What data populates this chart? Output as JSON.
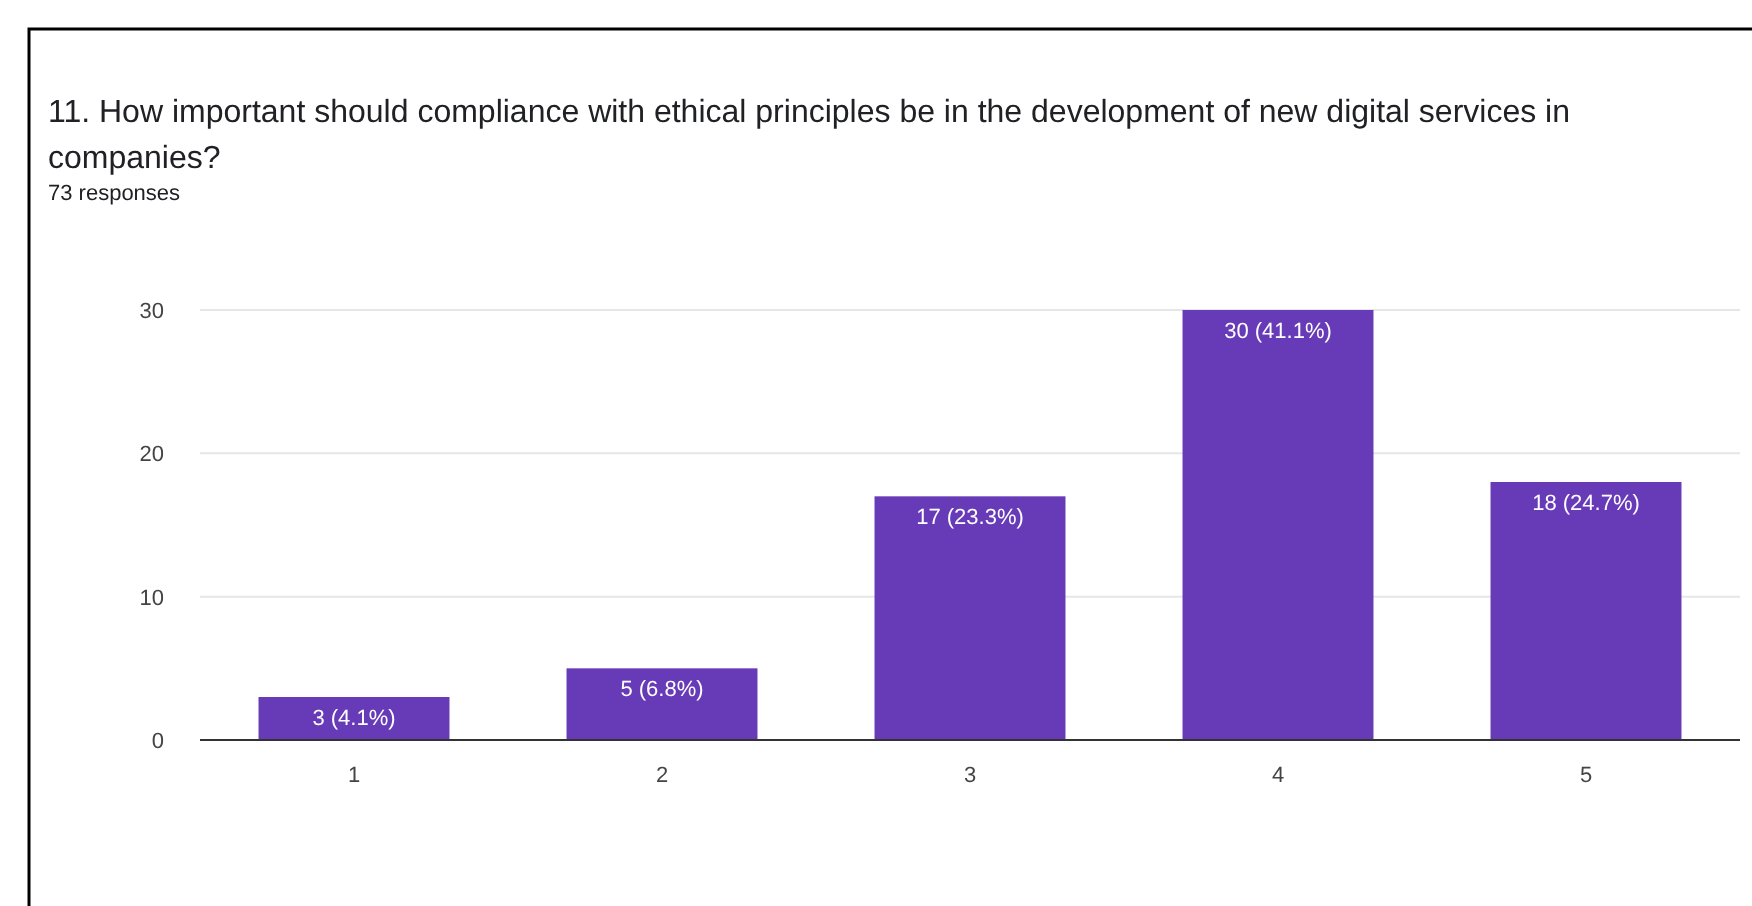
{
  "chart_data": {
    "type": "bar",
    "title": "11. How important should compliance with ethical principles be in the development of new digital services in companies?",
    "subtitle": "73 responses",
    "categories": [
      "1",
      "2",
      "3",
      "4",
      "5"
    ],
    "values": [
      3,
      5,
      17,
      30,
      18
    ],
    "color": "#673ab7",
    "value_labels": [
      "3 (4.1%)",
      "5 (6.8%)",
      "17 (23.3%)",
      "30 (41.1%)",
      "18 (24.7%)"
    ],
    "ylim": [
      0,
      30
    ],
    "yticks": [
      0,
      10,
      20,
      30
    ],
    "grid": "y"
  }
}
